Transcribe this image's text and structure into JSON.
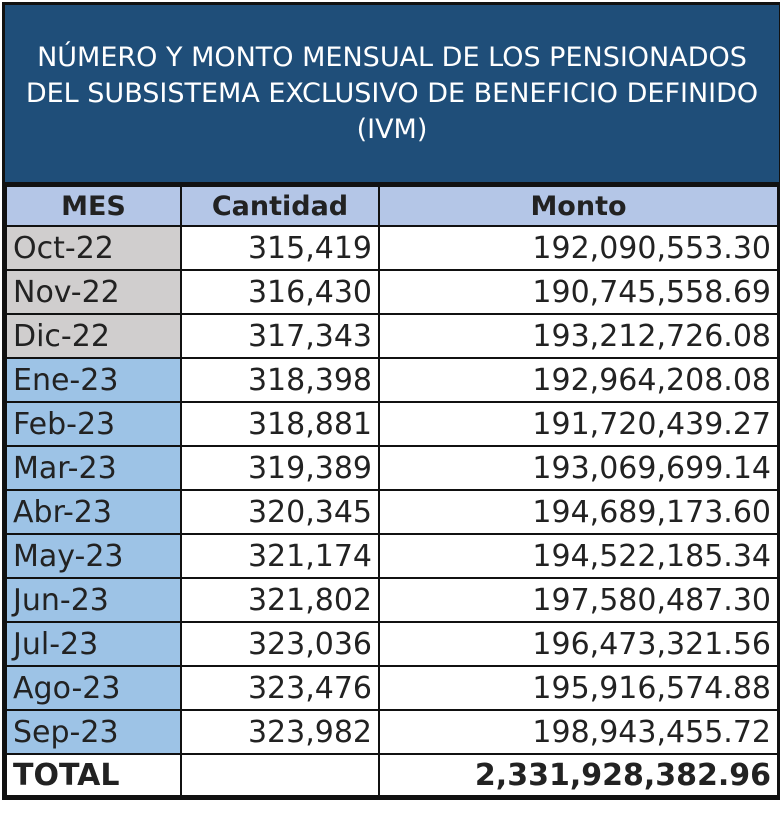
{
  "title": "NÚMERO Y MONTO MENSUAL DE LOS PENSIONADOS DEL SUBSISTEMA EXCLUSIVO DE BENEFICIO DEFINIDO (IVM)",
  "colors": {
    "title_bg": "#1f4e79",
    "header_bg": "#b4c6e7",
    "month_2022_bg": "#d0cece",
    "month_2023_bg": "#9dc3e6"
  },
  "columns": [
    "MES",
    "Cantidad",
    "Monto"
  ],
  "rows": [
    {
      "mes": "Oct-22",
      "cantidad": "315,419",
      "monto": "192,090,553.30"
    },
    {
      "mes": "Nov-22",
      "cantidad": "316,430",
      "monto": "190,745,558.69"
    },
    {
      "mes": "Dic-22",
      "cantidad": "317,343",
      "monto": "193,212,726.08"
    },
    {
      "mes": "Ene-23",
      "cantidad": "318,398",
      "monto": "192,964,208.08"
    },
    {
      "mes": "Feb-23",
      "cantidad": "318,881",
      "monto": "191,720,439.27"
    },
    {
      "mes": "Mar-23",
      "cantidad": "319,389",
      "monto": "193,069,699.14"
    },
    {
      "mes": "Abr-23",
      "cantidad": "320,345",
      "monto": "194,689,173.60"
    },
    {
      "mes": "May-23",
      "cantidad": "321,174",
      "monto": "194,522,185.34"
    },
    {
      "mes": "Jun-23",
      "cantidad": "321,802",
      "monto": "197,580,487.30"
    },
    {
      "mes": "Jul-23",
      "cantidad": "323,036",
      "monto": "196,473,321.56"
    },
    {
      "mes": "Ago-23",
      "cantidad": "323,476",
      "monto": "195,916,574.88"
    },
    {
      "mes": "Sep-23",
      "cantidad": "323,982",
      "monto": "198,943,455.72"
    }
  ],
  "total": {
    "label": "TOTAL",
    "cantidad": "",
    "monto": "2,331,928,382.96"
  }
}
